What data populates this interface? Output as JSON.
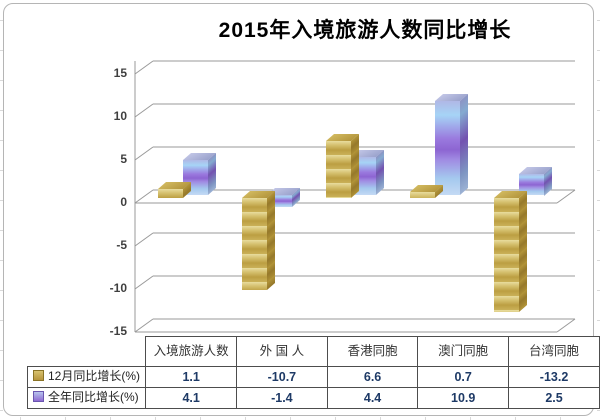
{
  "chart": {
    "title": "2015年入境旅游人数同比增长"
  },
  "chart_data": {
    "type": "bar",
    "style": "3d-clustered-column",
    "title": "2015年入境旅游人数同比增长",
    "categories": [
      "入境旅游人数",
      "外 国 人",
      "香港同胞",
      "澳门同胞",
      "台湾同胞"
    ],
    "series": [
      {
        "name": "12月同比增长(%)",
        "color_key": "gold",
        "color": "#c9ac4c",
        "values": [
          1.1,
          -10.7,
          6.6,
          0.7,
          -13.2
        ]
      },
      {
        "name": "全年同比增长(%)",
        "color_key": "purple",
        "color": "#a084e8",
        "values": [
          4.1,
          -1.4,
          4.4,
          10.9,
          2.5
        ]
      }
    ],
    "xlabel": "",
    "ylabel": "",
    "ylim": [
      -15,
      15
    ],
    "yticks": [
      15,
      10,
      5,
      0,
      -5,
      -10,
      -15
    ],
    "grid": true,
    "legend_position": "data-table-left",
    "colors": {
      "gridline": "#999999",
      "value_text": "#1e3a66",
      "header_text": "#333333",
      "table_border": "#4d4d4d"
    }
  }
}
